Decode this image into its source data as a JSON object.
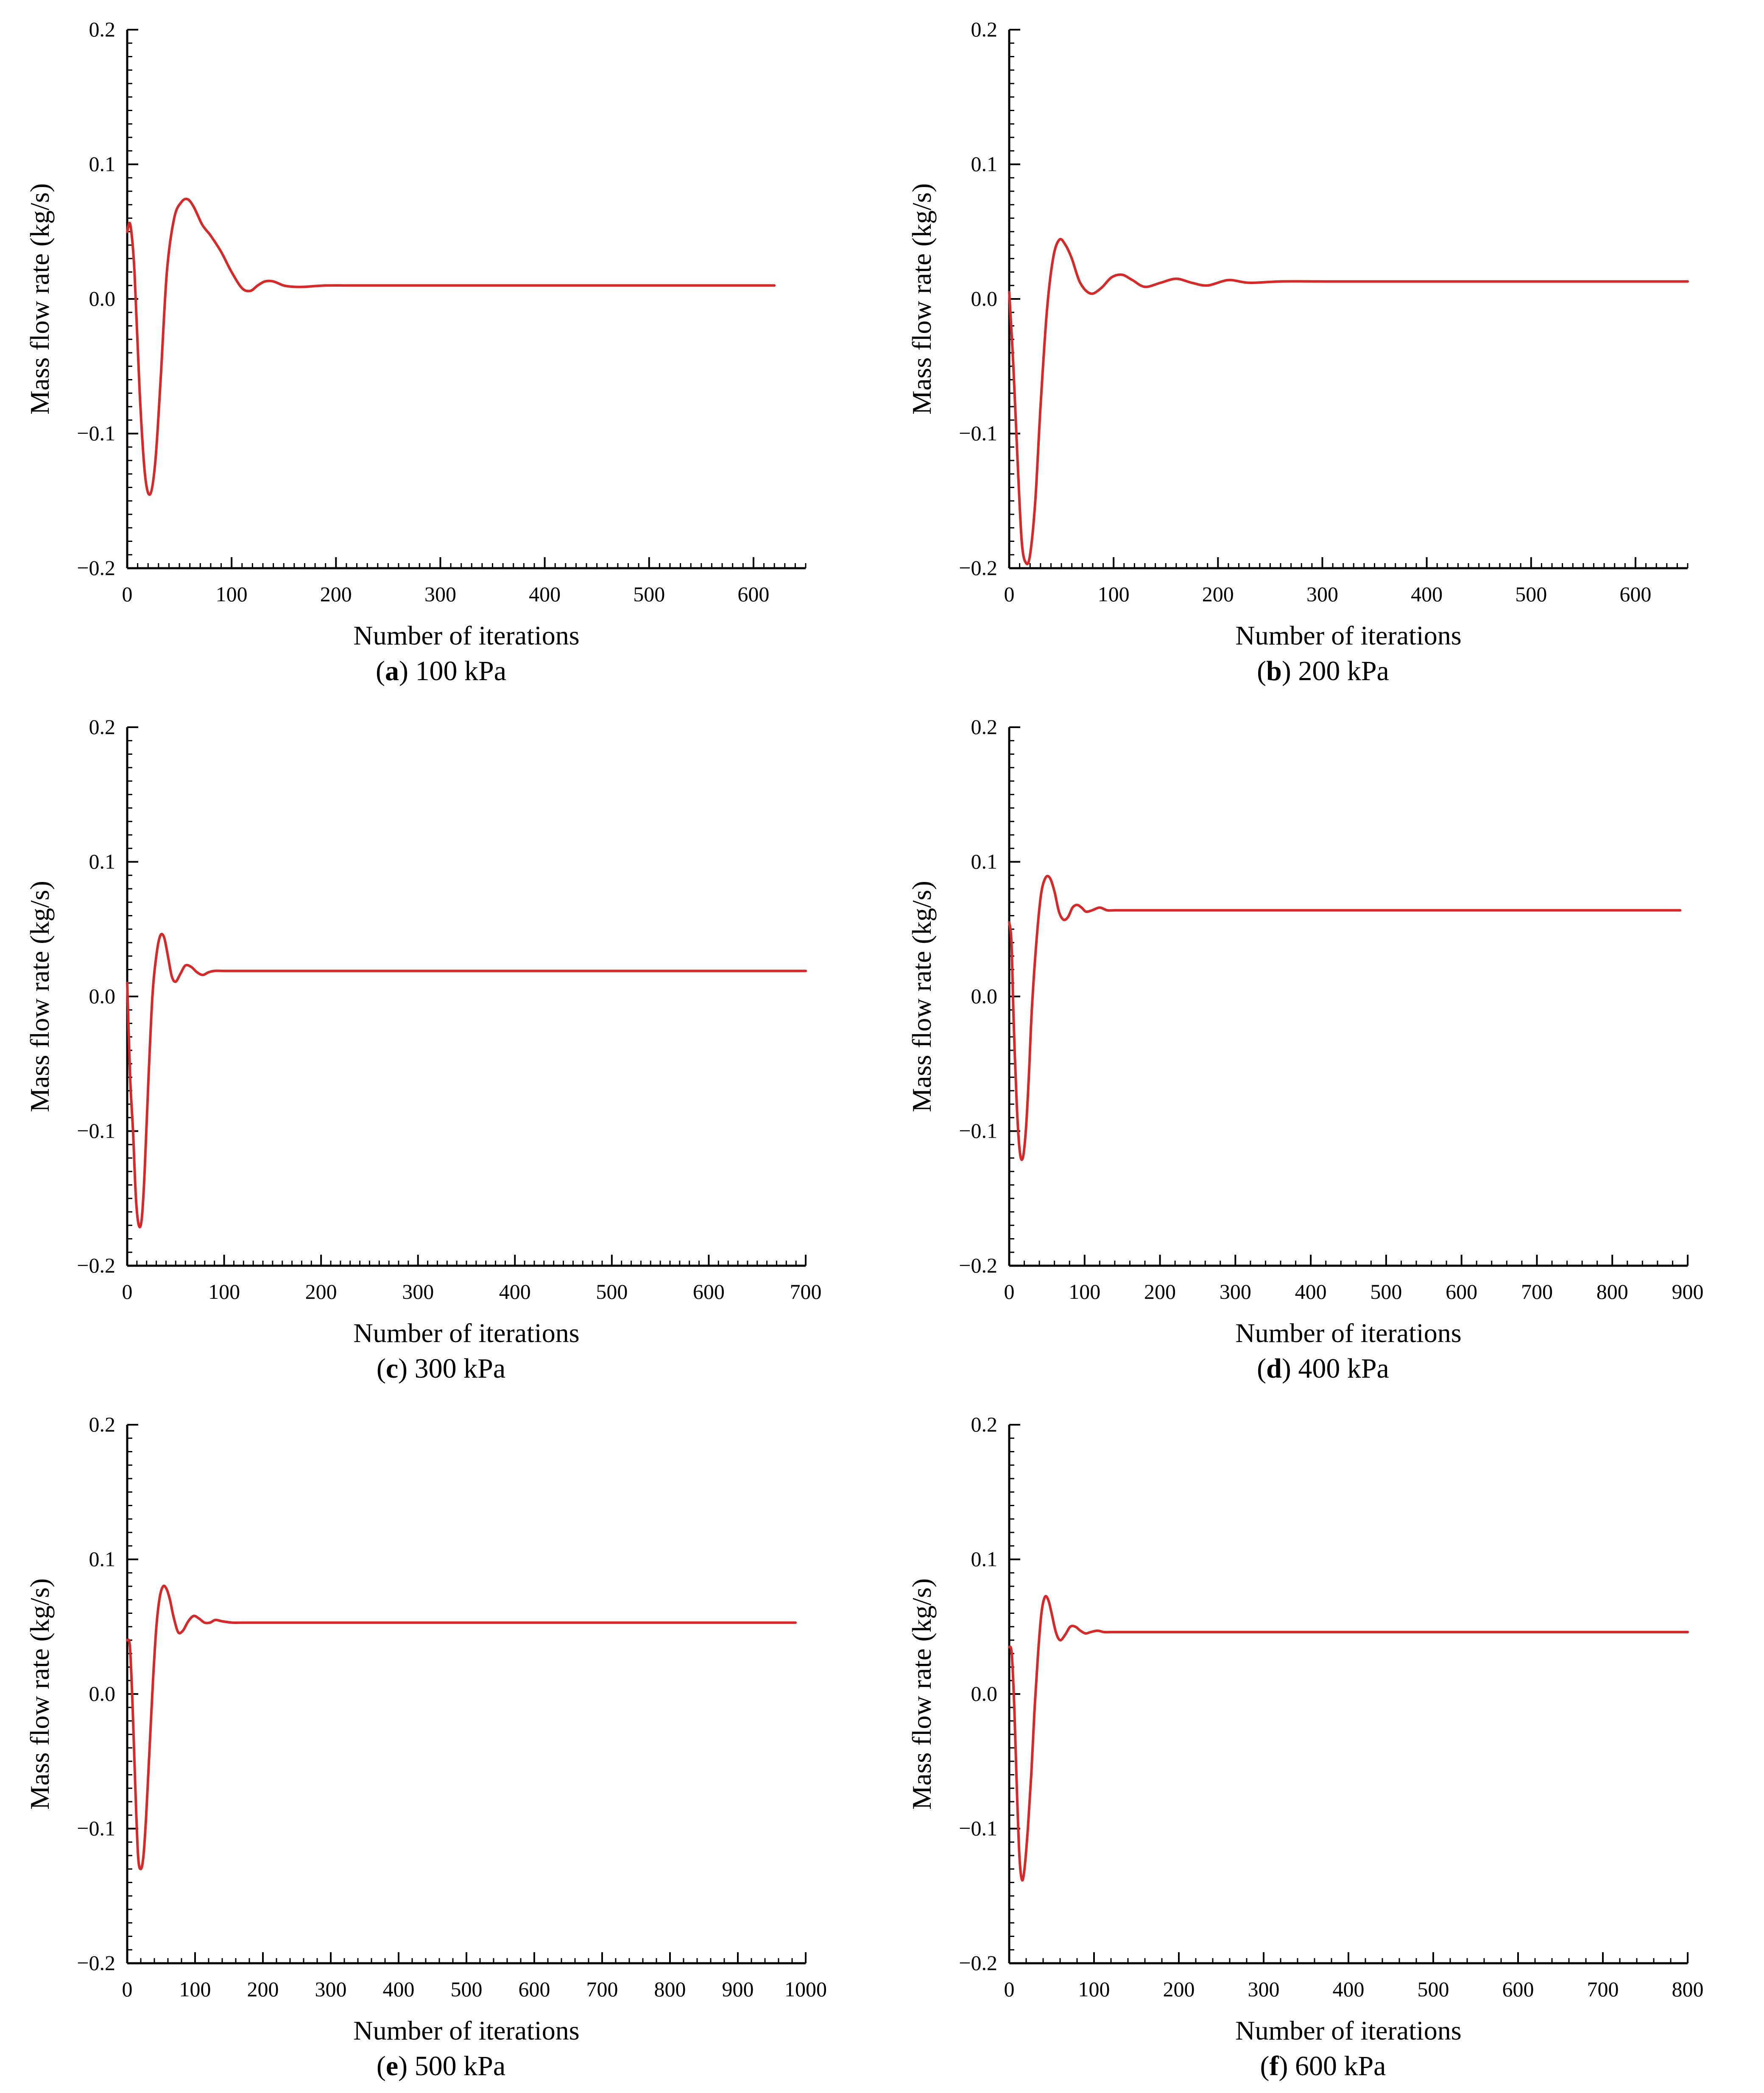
{
  "line_color": "#d42a2a",
  "axis_color": "#000000",
  "chart_data": [
    {
      "id": "a",
      "type": "line",
      "caption_letter": "a",
      "caption_text": " 100 kPa",
      "xlabel": "Number of iterations",
      "ylabel": "Mass flow rate   (kg/s)",
      "xlim": [
        0,
        650
      ],
      "ylim": [
        -0.2,
        0.2
      ],
      "xticks": [
        0,
        100,
        200,
        300,
        400,
        500,
        600
      ],
      "yticks": [
        -0.2,
        -0.1,
        0.0,
        0.1,
        0.2
      ],
      "xtick_labels": [
        "0",
        "100",
        "200",
        "300",
        "400",
        "500",
        "600"
      ],
      "ytick_labels": [
        "−0.2",
        "−0.1",
        "0.0",
        "0.1",
        "0.2"
      ],
      "x_minor_step": 10,
      "series": [
        {
          "x": [
            0,
            3,
            7,
            12,
            17,
            22,
            27,
            32,
            38,
            45,
            52,
            58,
            64,
            72,
            80,
            90,
            100,
            110,
            118,
            125,
            132,
            140,
            150,
            160,
            170,
            190,
            220,
            300,
            400,
            500,
            620
          ],
          "y": [
            0.05,
            0.055,
            0.02,
            -0.07,
            -0.13,
            -0.145,
            -0.12,
            -0.06,
            0.02,
            0.06,
            0.072,
            0.074,
            0.068,
            0.055,
            0.047,
            0.035,
            0.02,
            0.008,
            0.006,
            0.01,
            0.013,
            0.013,
            0.01,
            0.009,
            0.009,
            0.01,
            0.01,
            0.01,
            0.01,
            0.01,
            0.01
          ]
        }
      ]
    },
    {
      "id": "b",
      "type": "line",
      "caption_letter": "b",
      "caption_text": " 200 kPa",
      "xlabel": "Number of iterations",
      "ylabel": "Mass flow rate   (kg/s)",
      "xlim": [
        0,
        650
      ],
      "ylim": [
        -0.2,
        0.2
      ],
      "xticks": [
        0,
        100,
        200,
        300,
        400,
        500,
        600
      ],
      "yticks": [
        -0.2,
        -0.1,
        0.0,
        0.1,
        0.2
      ],
      "xtick_labels": [
        "0",
        "100",
        "200",
        "300",
        "400",
        "500",
        "600"
      ],
      "ytick_labels": [
        "−0.2",
        "−0.1",
        "0.0",
        "0.1",
        "0.2"
      ],
      "x_minor_step": 10,
      "series": [
        {
          "x": [
            0,
            4,
            8,
            12,
            16,
            20,
            25,
            30,
            36,
            42,
            48,
            54,
            60,
            68,
            78,
            88,
            98,
            108,
            118,
            130,
            145,
            160,
            175,
            190,
            210,
            230,
            260,
            300,
            400,
            500,
            650
          ],
          "y": [
            0.005,
            -0.05,
            -0.12,
            -0.18,
            -0.196,
            -0.19,
            -0.15,
            -0.08,
            -0.01,
            0.03,
            0.044,
            0.04,
            0.03,
            0.012,
            0.004,
            0.008,
            0.016,
            0.018,
            0.014,
            0.009,
            0.012,
            0.015,
            0.012,
            0.01,
            0.014,
            0.012,
            0.013,
            0.013,
            0.013,
            0.013,
            0.013
          ]
        }
      ]
    },
    {
      "id": "c",
      "type": "line",
      "caption_letter": "c",
      "caption_text": " 300 kPa",
      "xlabel": "Number of iterations",
      "ylabel": "Mass flow rate   (kg/s)",
      "xlim": [
        0,
        700
      ],
      "ylim": [
        -0.2,
        0.2
      ],
      "xticks": [
        0,
        100,
        200,
        300,
        400,
        500,
        600,
        700
      ],
      "yticks": [
        -0.2,
        -0.1,
        0.0,
        0.1,
        0.2
      ],
      "xtick_labels": [
        "0",
        "100",
        "200",
        "300",
        "400",
        "500",
        "600",
        "700"
      ],
      "ytick_labels": [
        "−0.2",
        "−0.1",
        "0.0",
        "0.1",
        "0.2"
      ],
      "x_minor_step": 10,
      "series": [
        {
          "x": [
            0,
            3,
            6,
            9,
            12,
            15,
            18,
            22,
            26,
            30,
            34,
            38,
            42,
            46,
            50,
            55,
            60,
            66,
            72,
            78,
            84,
            90,
            100,
            110,
            130,
            150,
            200,
            300,
            400,
            500,
            600,
            700
          ],
          "y": [
            0.01,
            -0.06,
            -0.1,
            -0.15,
            -0.17,
            -0.165,
            -0.13,
            -0.06,
            0.0,
            0.03,
            0.045,
            0.044,
            0.03,
            0.015,
            0.011,
            0.017,
            0.023,
            0.022,
            0.018,
            0.016,
            0.018,
            0.019,
            0.019,
            0.019,
            0.019,
            0.019,
            0.019,
            0.019,
            0.019,
            0.019,
            0.019,
            0.019
          ]
        }
      ]
    },
    {
      "id": "d",
      "type": "line",
      "caption_letter": "d",
      "caption_text": " 400 kPa",
      "xlabel": "Number of iterations",
      "ylabel": "Mass flow rate   (kg/s)",
      "xlim": [
        0,
        900
      ],
      "ylim": [
        -0.2,
        0.2
      ],
      "xticks": [
        0,
        100,
        200,
        300,
        400,
        500,
        600,
        700,
        800,
        900
      ],
      "yticks": [
        -0.2,
        -0.1,
        0.0,
        0.1,
        0.2
      ],
      "xtick_labels": [
        "0",
        "100",
        "200",
        "300",
        "400",
        "500",
        "600",
        "700",
        "800",
        "900"
      ],
      "ytick_labels": [
        "−0.2",
        "−0.1",
        "0.0",
        "0.1",
        "0.2"
      ],
      "x_minor_step": 20,
      "series": [
        {
          "x": [
            0,
            3,
            6,
            10,
            14,
            18,
            22,
            26,
            30,
            36,
            42,
            48,
            54,
            60,
            66,
            72,
            78,
            84,
            90,
            96,
            102,
            110,
            120,
            130,
            140,
            150,
            180,
            250,
            400,
            600,
            800,
            890
          ],
          "y": [
            0.055,
            0.04,
            -0.02,
            -0.08,
            -0.115,
            -0.12,
            -0.1,
            -0.06,
            -0.01,
            0.04,
            0.075,
            0.088,
            0.088,
            0.078,
            0.063,
            0.057,
            0.059,
            0.066,
            0.068,
            0.066,
            0.063,
            0.064,
            0.066,
            0.064,
            0.064,
            0.064,
            0.064,
            0.064,
            0.064,
            0.064,
            0.064,
            0.064
          ]
        }
      ]
    },
    {
      "id": "e",
      "type": "line",
      "caption_letter": "e",
      "caption_text": " 500 kPa",
      "xlabel": "Number of iterations",
      "ylabel": "Mass flow rate   (kg/s)",
      "xlim": [
        0,
        1000
      ],
      "ylim": [
        -0.2,
        0.2
      ],
      "xticks": [
        0,
        100,
        200,
        300,
        400,
        500,
        600,
        700,
        800,
        900,
        1000
      ],
      "yticks": [
        -0.2,
        -0.1,
        0.0,
        0.1,
        0.2
      ],
      "xtick_labels": [
        "0",
        "100",
        "200",
        "300",
        "400",
        "500",
        "600",
        "700",
        "800",
        "900",
        "1000"
      ],
      "ytick_labels": [
        "−0.2",
        "−0.1",
        "0.0",
        "0.1",
        "0.2"
      ],
      "x_minor_step": 20,
      "series": [
        {
          "x": [
            0,
            4,
            8,
            12,
            16,
            20,
            24,
            28,
            33,
            38,
            43,
            48,
            53,
            58,
            63,
            68,
            75,
            82,
            90,
            98,
            106,
            114,
            122,
            130,
            140,
            155,
            170,
            200,
            300,
            500,
            800,
            985
          ],
          "y": [
            0.04,
            0.035,
            -0.01,
            -0.07,
            -0.12,
            -0.13,
            -0.12,
            -0.09,
            -0.04,
            0.01,
            0.05,
            0.072,
            0.08,
            0.078,
            0.07,
            0.058,
            0.046,
            0.047,
            0.054,
            0.058,
            0.056,
            0.053,
            0.053,
            0.055,
            0.054,
            0.053,
            0.053,
            0.053,
            0.053,
            0.053,
            0.053,
            0.053
          ]
        }
      ]
    },
    {
      "id": "f",
      "type": "line",
      "caption_letter": "f",
      "caption_text": " 600 kPa",
      "xlabel": "Number of iterations",
      "ylabel": "Mass flow rate   (kg/s)",
      "xlim": [
        0,
        800
      ],
      "ylim": [
        -0.2,
        0.2
      ],
      "xticks": [
        0,
        100,
        200,
        300,
        400,
        500,
        600,
        700,
        800
      ],
      "yticks": [
        -0.2,
        -0.1,
        0.0,
        0.1,
        0.2
      ],
      "xtick_labels": [
        "0",
        "100",
        "200",
        "300",
        "400",
        "500",
        "600",
        "700",
        "800"
      ],
      "ytick_labels": [
        "−0.2",
        "−0.1",
        "0.0",
        "0.1",
        "0.2"
      ],
      "x_minor_step": 20,
      "series": [
        {
          "x": [
            0,
            3,
            6,
            9,
            12,
            15,
            18,
            22,
            26,
            30,
            34,
            38,
            42,
            46,
            50,
            55,
            60,
            66,
            72,
            78,
            84,
            90,
            96,
            104,
            112,
            120,
            130,
            150,
            200,
            400,
            600,
            800
          ],
          "y": [
            0.035,
            0.03,
            -0.01,
            -0.07,
            -0.12,
            -0.138,
            -0.13,
            -0.1,
            -0.06,
            -0.01,
            0.03,
            0.06,
            0.072,
            0.07,
            0.06,
            0.046,
            0.04,
            0.044,
            0.05,
            0.05,
            0.047,
            0.045,
            0.046,
            0.047,
            0.046,
            0.046,
            0.046,
            0.046,
            0.046,
            0.046,
            0.046,
            0.046
          ]
        }
      ]
    }
  ]
}
